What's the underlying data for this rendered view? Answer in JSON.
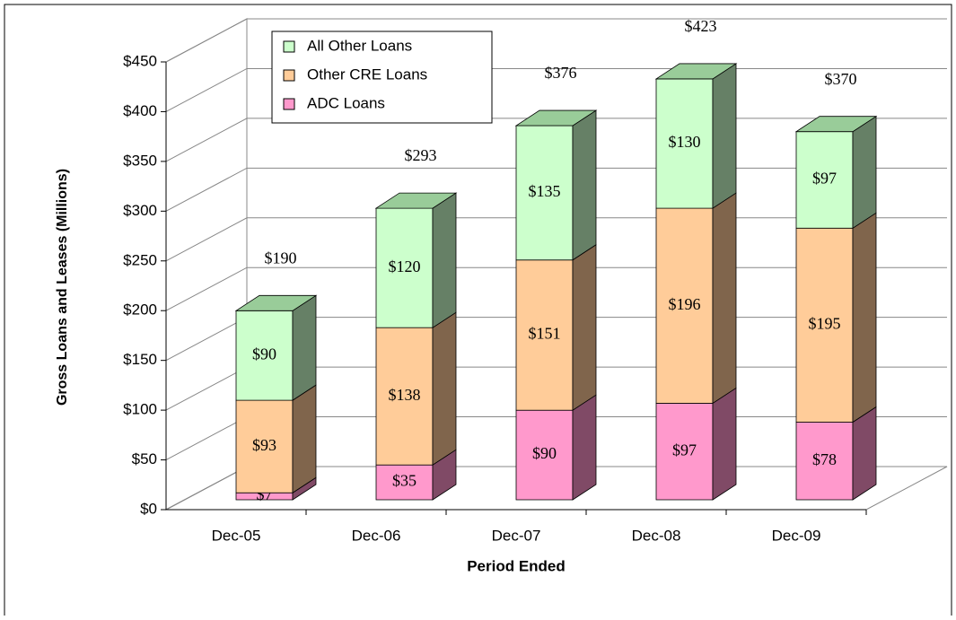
{
  "chart_data": {
    "type": "bar3d-stacked",
    "y_label": "Gross Loans and Leases  (Millions)",
    "x_label": "Period Ended",
    "categories": [
      "Dec-05",
      "Dec-06",
      "Dec-07",
      "Dec-08",
      "Dec-09"
    ],
    "series": [
      {
        "name": "ADC Loans",
        "color": "#ff99cc",
        "side_color": "#804a66",
        "values": [
          7,
          35,
          90,
          97,
          78
        ],
        "value_labels": [
          "$7",
          "$35",
          "$90",
          "$97",
          "$78"
        ]
      },
      {
        "name": "Other CRE Loans",
        "color": "#ffcc99",
        "side_color": "#80654c",
        "values": [
          93,
          138,
          151,
          196,
          195
        ],
        "value_labels": [
          "$93",
          "$138",
          "$151",
          "$196",
          "$195"
        ]
      },
      {
        "name": "All Other Loans",
        "color": "#ccffcc",
        "side_color": "#668066",
        "values": [
          90,
          120,
          135,
          130,
          97
        ],
        "value_labels": [
          "$90",
          "$120",
          "$135",
          "$130",
          "$97"
        ]
      }
    ],
    "totals": [
      190,
      293,
      376,
      423,
      370
    ],
    "total_labels": [
      "$190",
      "$293",
      "$376",
      "$423",
      "$370"
    ],
    "ylim": [
      0,
      450
    ],
    "yticks": [
      {
        "value": 0,
        "label": "$0"
      },
      {
        "value": 50,
        "label": "$50"
      },
      {
        "value": 100,
        "label": "$100"
      },
      {
        "value": 150,
        "label": "$150"
      },
      {
        "value": 200,
        "label": "$200"
      },
      {
        "value": 250,
        "label": "$250"
      },
      {
        "value": 300,
        "label": "$300"
      },
      {
        "value": 350,
        "label": "$350"
      },
      {
        "value": 400,
        "label": "$400"
      },
      {
        "value": 450,
        "label": "$450"
      }
    ],
    "grid": true
  }
}
